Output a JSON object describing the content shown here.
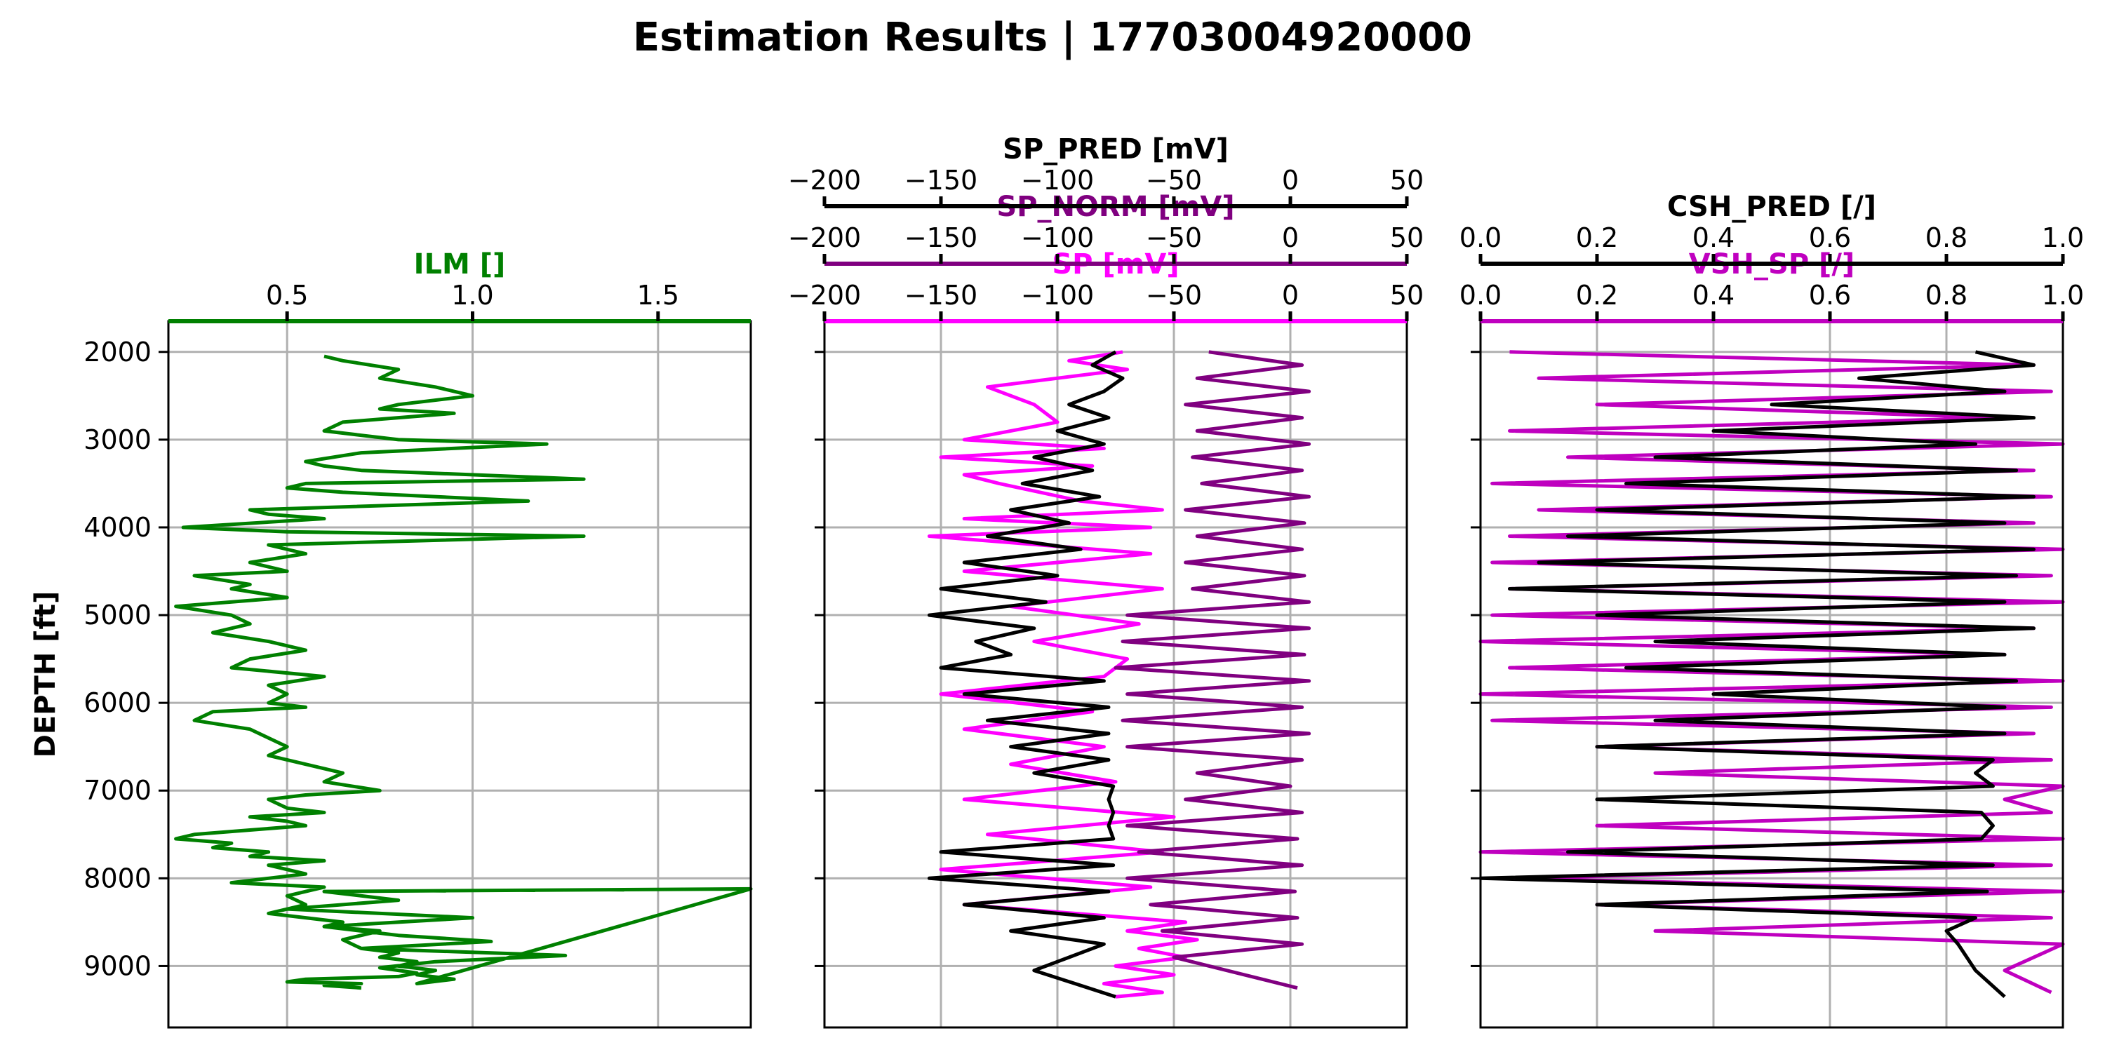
{
  "title": "Estimation Results | 17703004920000",
  "chart_data": [
    {
      "type": "line",
      "panel": "track-1",
      "ylabel": "DEPTH [ft]",
      "ylim": [
        9700,
        1650
      ],
      "yticks": [
        2000,
        3000,
        4000,
        5000,
        6000,
        7000,
        8000,
        9000
      ],
      "grid": true,
      "axes": [
        {
          "label": "ILM []",
          "color": "#008000",
          "xlim": [
            0.18,
            1.75
          ],
          "ticks": [
            0.5,
            1.0,
            1.5
          ],
          "tick_labels": [
            "0.5",
            "1.0",
            "1.5"
          ]
        }
      ],
      "series": [
        {
          "name": "ILM []",
          "axis": 0,
          "color": "#008000",
          "x": [
            0.6,
            0.65,
            0.8,
            0.75,
            0.9,
            1.0,
            0.8,
            0.75,
            0.95,
            0.65,
            0.6,
            0.8,
            1.2,
            0.7,
            0.55,
            0.6,
            0.7,
            1.3,
            0.55,
            0.5,
            0.65,
            1.15,
            0.4,
            0.45,
            0.6,
            0.22,
            0.5,
            1.3,
            0.45,
            0.55,
            0.4,
            0.5,
            0.25,
            0.4,
            0.35,
            0.5,
            0.2,
            0.35,
            0.4,
            0.3,
            0.45,
            0.55,
            0.4,
            0.35,
            0.6,
            0.45,
            0.5,
            0.45,
            0.55,
            0.3,
            0.25,
            0.4,
            0.45,
            0.5,
            0.45,
            0.55,
            0.65,
            0.6,
            0.75,
            0.55,
            0.45,
            0.5,
            0.6,
            0.4,
            0.5,
            0.55,
            0.4,
            0.25,
            0.2,
            0.35,
            0.3,
            0.45,
            0.4,
            0.6,
            0.45,
            0.5,
            0.55,
            0.45,
            0.35,
            0.6,
            0.5,
            0.55,
            0.45,
            0.65,
            0.6,
            0.75,
            0.65,
            0.7,
            0.8,
            0.75,
            0.85,
            0.8,
            0.9,
            0.85,
            0.95,
            0.85,
            1.75,
            0.6,
            0.8,
            0.5,
            1.0,
            0.6,
            0.8,
            1.05,
            0.7,
            1.25,
            0.9,
            0.75,
            0.85,
            0.8,
            0.55,
            0.5,
            0.7,
            0.6,
            0.7
          ],
          "y": [
            2050,
            2100,
            2200,
            2300,
            2400,
            2500,
            2600,
            2650,
            2700,
            2800,
            2900,
            3000,
            3050,
            3150,
            3250,
            3300,
            3350,
            3450,
            3500,
            3550,
            3600,
            3700,
            3800,
            3850,
            3900,
            4000,
            4050,
            4100,
            4200,
            4300,
            4400,
            4500,
            4550,
            4650,
            4700,
            4800,
            4900,
            5000,
            5100,
            5200,
            5300,
            5400,
            5500,
            5600,
            5700,
            5800,
            5900,
            6000,
            6050,
            6100,
            6200,
            6300,
            6400,
            6500,
            6600,
            6700,
            6800,
            6900,
            7000,
            7050,
            7100,
            7200,
            7250,
            7300,
            7350,
            7400,
            7450,
            7500,
            7550,
            7600,
            7650,
            7700,
            7750,
            7800,
            7850,
            7900,
            7950,
            8000,
            8050,
            8100,
            8200,
            8300,
            8400,
            8500,
            8550,
            8600,
            8700,
            8800,
            8850,
            8900,
            8950,
            9000,
            9050,
            9100,
            9150,
            9200,
            8120,
            8150,
            8250,
            8350,
            8450,
            8550,
            8650,
            8720,
            8800,
            8880,
            8950,
            9020,
            9080,
            9120,
            9150,
            9180,
            9200,
            9220,
            9250
          ]
        }
      ]
    },
    {
      "type": "line",
      "panel": "track-2",
      "ylim": [
        9700,
        1650
      ],
      "yticks": [
        2000,
        3000,
        4000,
        5000,
        6000,
        7000,
        8000,
        9000
      ],
      "grid": true,
      "axes": [
        {
          "label": "SP [mV]",
          "color": "#ff00ff",
          "xlim": [
            -200,
            50
          ],
          "ticks": [
            -200,
            -150,
            -100,
            -50,
            0,
            50
          ],
          "tick_labels": [
            "−200",
            "−150",
            "−100",
            "−50",
            "0",
            "50"
          ]
        },
        {
          "label": "SP_NORM [mV]",
          "color": "#800080",
          "xlim": [
            -200,
            50
          ],
          "ticks": [
            -200,
            -150,
            -100,
            -50,
            0,
            50
          ],
          "tick_labels": [
            "−200",
            "−150",
            "−100",
            "−50",
            "0",
            "50"
          ]
        },
        {
          "label": "SP_PRED [mV]",
          "color": "#000000",
          "xlim": [
            -200,
            50
          ],
          "ticks": [
            -200,
            -150,
            -100,
            -50,
            0,
            50
          ],
          "tick_labels": [
            "−200",
            "−150",
            "−100",
            "−50",
            "0",
            "50"
          ]
        }
      ],
      "series": [
        {
          "name": "SP [mV]",
          "axis": 0,
          "color": "#ff00ff",
          "x": [
            -72,
            -95,
            -70,
            -130,
            -110,
            -100,
            -140,
            -80,
            -150,
            -85,
            -140,
            -125,
            -90,
            -55,
            -140,
            -60,
            -155,
            -60,
            -140,
            -55,
            -120,
            -65,
            -110,
            -70,
            -80,
            -150,
            -85,
            -140,
            -80,
            -120,
            -75,
            -140,
            -50,
            -130,
            -55,
            -150,
            -60,
            -140,
            -45,
            -70,
            -40,
            -65,
            -45,
            -75,
            -50,
            -80,
            -55,
            -75
          ],
          "y": [
            2000,
            2100,
            2200,
            2400,
            2600,
            2800,
            3000,
            3100,
            3200,
            3300,
            3400,
            3500,
            3700,
            3800,
            3900,
            4000,
            4100,
            4300,
            4500,
            4700,
            4900,
            5100,
            5300,
            5500,
            5700,
            5900,
            6100,
            6300,
            6500,
            6700,
            6900,
            7100,
            7300,
            7500,
            7700,
            7900,
            8100,
            8300,
            8500,
            8600,
            8700,
            8800,
            8900,
            9000,
            9100,
            9200,
            9300,
            9350
          ]
        },
        {
          "name": "SP_NORM [mV]",
          "axis": 1,
          "color": "#800080",
          "x": [
            -35,
            5,
            -40,
            8,
            -45,
            5,
            -40,
            8,
            -42,
            5,
            -38,
            8,
            -45,
            6,
            -40,
            5,
            -45,
            6,
            -42,
            8,
            -70,
            8,
            -72,
            6,
            -75,
            8,
            -70,
            5,
            -72,
            8,
            -70,
            5,
            -40,
            0,
            -45,
            5,
            -70,
            3,
            -65,
            5,
            -70,
            2,
            -60,
            3,
            -55,
            5,
            -50,
            3
          ],
          "y": [
            2000,
            2150,
            2300,
            2450,
            2600,
            2750,
            2900,
            3050,
            3200,
            3350,
            3500,
            3650,
            3800,
            3950,
            4100,
            4250,
            4400,
            4550,
            4700,
            4850,
            5000,
            5150,
            5300,
            5450,
            5600,
            5750,
            5900,
            6050,
            6200,
            6350,
            6500,
            6650,
            6800,
            6950,
            7100,
            7250,
            7400,
            7550,
            7700,
            7850,
            8000,
            8150,
            8300,
            8450,
            8600,
            8750,
            8900,
            9250
          ]
        },
        {
          "name": "SP_PRED [mV]",
          "axis": 2,
          "color": "#000000",
          "x": [
            -75,
            -85,
            -72,
            -80,
            -95,
            -78,
            -100,
            -80,
            -110,
            -85,
            -115,
            -82,
            -120,
            -95,
            -130,
            -90,
            -140,
            -100,
            -150,
            -105,
            -155,
            -110,
            -135,
            -120,
            -150,
            -80,
            -140,
            -78,
            -130,
            -78,
            -120,
            -78,
            -110,
            -76,
            -78,
            -76,
            -78,
            -76,
            -150,
            -76,
            -155,
            -78,
            -140,
            -80,
            -120,
            -80,
            -110,
            -75
          ],
          "y": [
            2000,
            2150,
            2300,
            2450,
            2600,
            2750,
            2900,
            3050,
            3200,
            3350,
            3500,
            3650,
            3800,
            3950,
            4100,
            4250,
            4400,
            4550,
            4700,
            4850,
            5000,
            5150,
            5300,
            5450,
            5600,
            5750,
            5900,
            6050,
            6200,
            6350,
            6500,
            6650,
            6800,
            6950,
            7100,
            7250,
            7400,
            7550,
            7700,
            7850,
            8000,
            8150,
            8300,
            8450,
            8600,
            8750,
            9050,
            9350
          ]
        }
      ]
    },
    {
      "type": "line",
      "panel": "track-3",
      "ylim": [
        9700,
        1650
      ],
      "yticks": [
        2000,
        3000,
        4000,
        5000,
        6000,
        7000,
        8000,
        9000
      ],
      "grid": true,
      "axes": [
        {
          "label": "VSH_SP [/]",
          "color": "#bf00bf",
          "xlim": [
            0,
            1
          ],
          "ticks": [
            0,
            0.2,
            0.4,
            0.6,
            0.8,
            1.0
          ],
          "tick_labels": [
            "0.0",
            "0.2",
            "0.4",
            "0.6",
            "0.8",
            "1.0"
          ]
        },
        {
          "label": "CSH_PRED [/]",
          "color": "#000000",
          "xlim": [
            0,
            1
          ],
          "ticks": [
            0,
            0.2,
            0.4,
            0.6,
            0.8,
            1.0
          ],
          "tick_labels": [
            "0.0",
            "0.2",
            "0.4",
            "0.6",
            "0.8",
            "1.0"
          ]
        }
      ],
      "series": [
        {
          "name": "VSH_SP [/]",
          "axis": 0,
          "color": "#bf00bf",
          "x": [
            0.05,
            0.95,
            0.1,
            0.98,
            0.2,
            0.9,
            0.05,
            1.0,
            0.15,
            0.95,
            0.02,
            0.98,
            0.1,
            0.95,
            0.05,
            1.0,
            0.02,
            0.98,
            0.05,
            1.0,
            0.02,
            0.95,
            0.0,
            0.9,
            0.05,
            1.0,
            0.0,
            0.98,
            0.02,
            0.95,
            0.2,
            0.98,
            0.3,
            1.0,
            0.9,
            0.98,
            0.2,
            1.0,
            0.0,
            0.98,
            0.05,
            1.0,
            0.2,
            0.98,
            0.3,
            1.0,
            0.9,
            0.98
          ],
          "y": [
            2000,
            2150,
            2300,
            2450,
            2600,
            2750,
            2900,
            3050,
            3200,
            3350,
            3500,
            3650,
            3800,
            3950,
            4100,
            4250,
            4400,
            4550,
            4700,
            4850,
            5000,
            5150,
            5300,
            5450,
            5600,
            5750,
            5900,
            6050,
            6200,
            6350,
            6500,
            6650,
            6800,
            6950,
            7100,
            7250,
            7400,
            7550,
            7700,
            7850,
            8000,
            8150,
            8300,
            8450,
            8600,
            8750,
            9050,
            9300
          ]
        },
        {
          "name": "CSH_PRED [/]",
          "axis": 1,
          "color": "#000000",
          "x": [
            0.85,
            0.95,
            0.65,
            0.9,
            0.5,
            0.95,
            0.4,
            0.85,
            0.3,
            0.92,
            0.25,
            0.95,
            0.2,
            0.9,
            0.15,
            0.95,
            0.1,
            0.92,
            0.05,
            0.9,
            0.2,
            0.95,
            0.3,
            0.9,
            0.25,
            0.92,
            0.4,
            0.9,
            0.3,
            0.9,
            0.2,
            0.88,
            0.85,
            0.88,
            0.2,
            0.86,
            0.88,
            0.86,
            0.15,
            0.88,
            0.0,
            0.87,
            0.2,
            0.85,
            0.8,
            0.82,
            0.85,
            0.9
          ],
          "y": [
            2000,
            2150,
            2300,
            2450,
            2600,
            2750,
            2900,
            3050,
            3200,
            3350,
            3500,
            3650,
            3800,
            3950,
            4100,
            4250,
            4400,
            4550,
            4700,
            4850,
            5000,
            5150,
            5300,
            5450,
            5600,
            5750,
            5900,
            6050,
            6200,
            6350,
            6500,
            6650,
            6800,
            6950,
            7100,
            7250,
            7400,
            7550,
            7700,
            7850,
            8000,
            8150,
            8300,
            8450,
            8600,
            8750,
            9050,
            9350
          ]
        }
      ]
    }
  ]
}
